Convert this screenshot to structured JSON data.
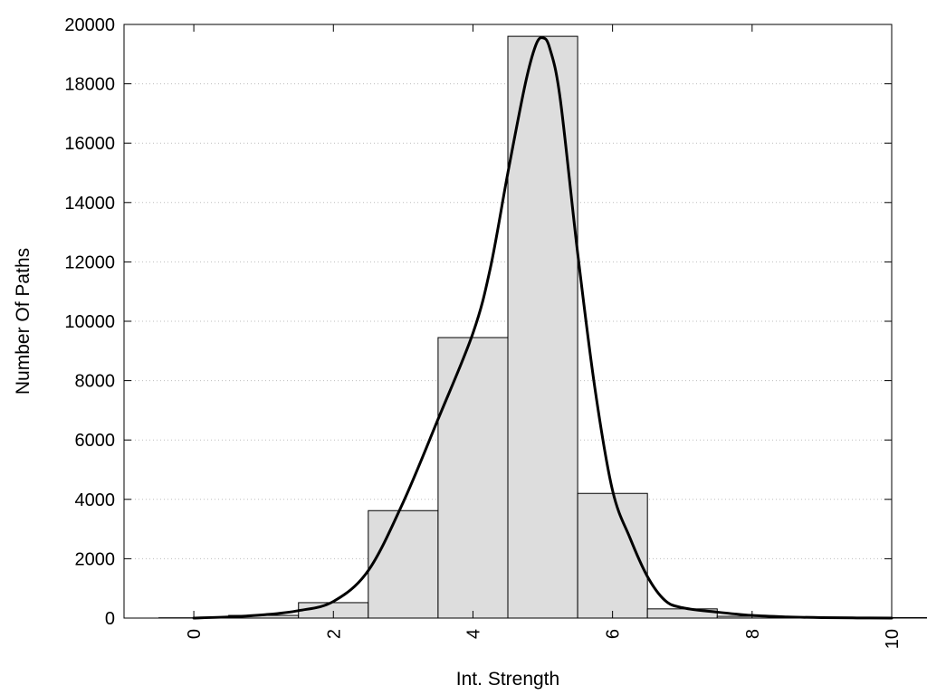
{
  "chart_data": {
    "type": "bar",
    "title": "",
    "xlabel": "Int. Strength",
    "ylabel": "Number Of Paths",
    "xlim": [
      -1,
      10
    ],
    "ylim": [
      0,
      20000
    ],
    "x_ticks": [
      0,
      2,
      4,
      6,
      8,
      10
    ],
    "y_ticks": [
      0,
      2000,
      4000,
      6000,
      8000,
      10000,
      12000,
      14000,
      16000,
      18000,
      20000
    ],
    "grid": "horizontal dotted",
    "bar_fill": "#dddddd",
    "curve_color": "#000000",
    "bars": [
      {
        "x": 0,
        "value": 10
      },
      {
        "x": 1,
        "value": 90
      },
      {
        "x": 2,
        "value": 520
      },
      {
        "x": 3,
        "value": 3620
      },
      {
        "x": 4,
        "value": 9450
      },
      {
        "x": 5,
        "value": 19600
      },
      {
        "x": 6,
        "value": 4200
      },
      {
        "x": 7,
        "value": 310
      },
      {
        "x": 8,
        "value": 60
      },
      {
        "x": 9,
        "value": 20
      },
      {
        "x": 10,
        "value": 15
      }
    ],
    "curve": {
      "x": [
        0,
        0.5,
        1,
        1.5,
        2,
        2.5,
        3,
        3.5,
        4,
        4.25,
        4.5,
        4.75,
        4.9,
        5.0,
        5.1,
        5.25,
        5.5,
        5.75,
        6,
        6.25,
        6.5,
        6.75,
        7,
        7.5,
        8,
        8.5,
        9,
        9.5,
        10
      ],
      "y": [
        0,
        40,
        110,
        250,
        560,
        1600,
        3900,
        6700,
        9600,
        11800,
        15000,
        18000,
        19300,
        19550,
        19200,
        17500,
        12300,
        7700,
        4300,
        2700,
        1400,
        600,
        350,
        200,
        90,
        40,
        15,
        5,
        0
      ]
    }
  }
}
